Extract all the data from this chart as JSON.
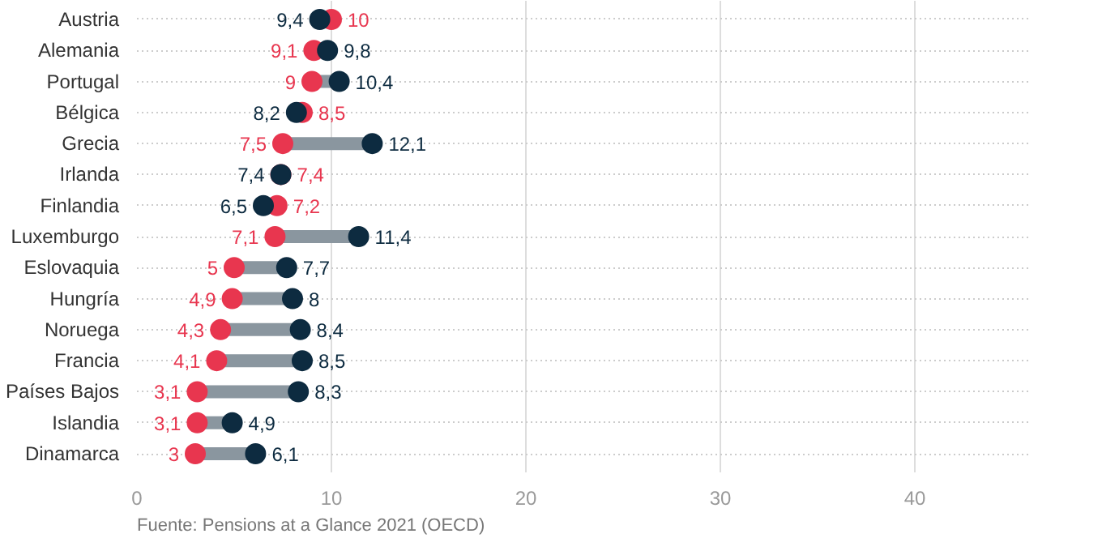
{
  "chart_data": {
    "type": "scatter",
    "orientation": "horizontal",
    "categories": [
      "Austria",
      "Alemania",
      "Portugal",
      "Bélgica",
      "Grecia",
      "Irlanda",
      "Finlandia",
      "Luxemburgo",
      "Eslovaquia",
      "Hungría",
      "Noruega",
      "Francia",
      "Países Bajos",
      "Islandia",
      "Dinamarca"
    ],
    "series": [
      {
        "color": "#e8364f",
        "values": [
          10,
          9.1,
          9,
          8.5,
          7.5,
          7.4,
          7.2,
          7.1,
          5,
          4.9,
          4.3,
          4.1,
          3.1,
          3.1,
          3
        ],
        "value_labels": [
          "10",
          "9,1",
          "9",
          "8,5",
          "7,5",
          "7,4",
          "7,2",
          "7,1",
          "5",
          "4,9",
          "4,3",
          "4,1",
          "3,1",
          "3,1",
          "3"
        ]
      },
      {
        "color": "#0d2b40",
        "values": [
          9.4,
          9.8,
          10.4,
          8.2,
          12.1,
          7.4,
          6.5,
          11.4,
          7.7,
          8,
          8.4,
          8.5,
          8.3,
          4.9,
          6.1
        ],
        "value_labels": [
          "9,4",
          "9,8",
          "10,4",
          "8,2",
          "12,1",
          "7,4",
          "6,5",
          "11,4",
          "7,7",
          "8",
          "8,4",
          "8,5",
          "8,3",
          "4,9",
          "6,1"
        ]
      }
    ],
    "xlim": [
      0,
      46
    ],
    "xticks": [
      0,
      10,
      20,
      30,
      40
    ],
    "grid": true,
    "marker": "circle",
    "annotations": [
      "Fuente: Pensions at a Glance 2021 (OECD)"
    ]
  }
}
